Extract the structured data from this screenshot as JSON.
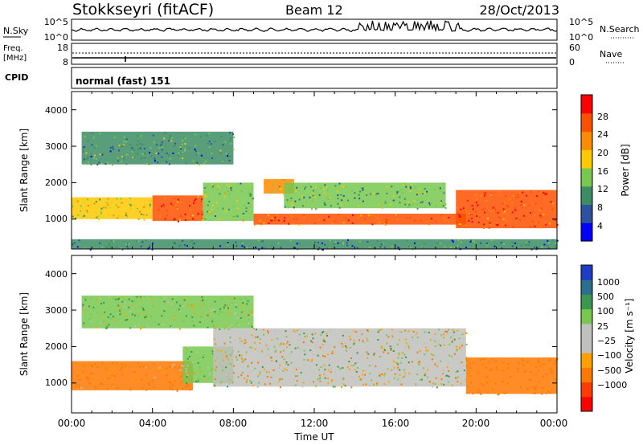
{
  "header": {
    "station": "Stokkseyri (fitACF)",
    "beam": "Beam 12",
    "date": "28/Oct/2013"
  },
  "noise_panel": {
    "left_label": "N.Sky",
    "right_label": "N.Search",
    "ticks_left": [
      "10^5",
      "10^0"
    ],
    "ticks_right": [
      "10^5",
      "10^0"
    ]
  },
  "freq_panel": {
    "left_label_1": "Freq.",
    "left_label_2": "[MHz]",
    "right_label": "Nave",
    "ticks_left": [
      "18",
      "8"
    ],
    "ticks_right": [
      "60",
      "0"
    ]
  },
  "cpid_panel": {
    "label": "CPID",
    "value": "normal (fast) 151"
  },
  "power_panel": {
    "ylabel": "Slant Range [km]",
    "yticks": [
      "4000",
      "3000",
      "2000",
      "1000"
    ],
    "colorbar_label": "Power [dB]",
    "colorbar_ticks": [
      "28",
      "24",
      "20",
      "16",
      "12",
      "8",
      "4"
    ],
    "colors": [
      "#0000ff",
      "#2d50a0",
      "#3c8c64",
      "#78c850",
      "#ffc800",
      "#ff8c00",
      "#ff5000",
      "#ff0000"
    ]
  },
  "velocity_panel": {
    "ylabel": "Slant Range [km]",
    "yticks": [
      "4000",
      "3000",
      "2000",
      "1000"
    ],
    "colorbar_label": "Velocity [m s⁻¹]",
    "colorbar_ticks": [
      "1000",
      "500",
      "100",
      "25",
      "−25",
      "−100",
      "−500",
      "−1000"
    ],
    "colors": [
      "#1e3cc8",
      "#2d6e8c",
      "#3c9650",
      "#78c850",
      "#c0c0bc",
      "#c0c0bc",
      "#ffa000",
      "#ff7800",
      "#ff3c00",
      "#ff0000"
    ]
  },
  "xaxis": {
    "label": "Time UT",
    "ticks": [
      "00:00",
      "04:00",
      "08:00",
      "12:00",
      "16:00",
      "20:00",
      "00:00"
    ]
  },
  "chart_data": [
    {
      "type": "heatmap",
      "title": "Power",
      "ylabel": "Slant Range [km]",
      "xlabel": "Time UT",
      "xlim": [
        0,
        24
      ],
      "ylim": [
        180,
        4500
      ],
      "color_label": "Power [dB]",
      "color_range": [
        0,
        32
      ],
      "bands": [
        {
          "t_start": 0.0,
          "t_end": 4.0,
          "range_low": 1000,
          "range_high": 1600,
          "power_db": 16
        },
        {
          "t_start": 4.0,
          "t_end": 6.5,
          "range_low": 950,
          "range_high": 1650,
          "power_db": 26
        },
        {
          "t_start": 6.5,
          "t_end": 9.0,
          "range_low": 950,
          "range_high": 2000,
          "power_db": 14
        },
        {
          "t_start": 9.0,
          "t_end": 19.5,
          "range_low": 850,
          "range_high": 1150,
          "power_db": 24
        },
        {
          "t_start": 9.5,
          "t_end": 11.0,
          "range_low": 1700,
          "range_high": 2100,
          "power_db": 22
        },
        {
          "t_start": 10.5,
          "t_end": 18.5,
          "range_low": 1300,
          "range_high": 2000,
          "power_db": 12
        },
        {
          "t_start": 19.0,
          "t_end": 24.0,
          "range_low": 750,
          "range_high": 1800,
          "power_db": 26
        },
        {
          "t_start": 0.0,
          "t_end": 24.0,
          "range_low": 180,
          "range_high": 450,
          "power_db": 8
        },
        {
          "t_start": 0.5,
          "t_end": 8.0,
          "range_low": 2500,
          "range_high": 3400,
          "power_db": 10
        }
      ]
    },
    {
      "type": "heatmap",
      "title": "Velocity",
      "ylabel": "Slant Range [km]",
      "xlabel": "Time UT",
      "xlim": [
        0,
        24
      ],
      "ylim": [
        180,
        4500
      ],
      "color_label": "Velocity [m s⁻¹]",
      "color_range": [
        -1000,
        1000
      ],
      "bands": [
        {
          "t_start": 0.0,
          "t_end": 6.0,
          "range_low": 800,
          "range_high": 1600,
          "velocity": -150
        },
        {
          "t_start": 5.5,
          "t_end": 8.0,
          "range_low": 1000,
          "range_high": 2000,
          "velocity": 80
        },
        {
          "t_start": 7.0,
          "t_end": 19.5,
          "range_low": 900,
          "range_high": 2500,
          "velocity": 0
        },
        {
          "t_start": 19.5,
          "t_end": 24.0,
          "range_low": 700,
          "range_high": 1700,
          "velocity": -200
        },
        {
          "t_start": 0.5,
          "t_end": 9.0,
          "range_low": 2500,
          "range_high": 3400,
          "velocity": 60
        }
      ]
    }
  ]
}
